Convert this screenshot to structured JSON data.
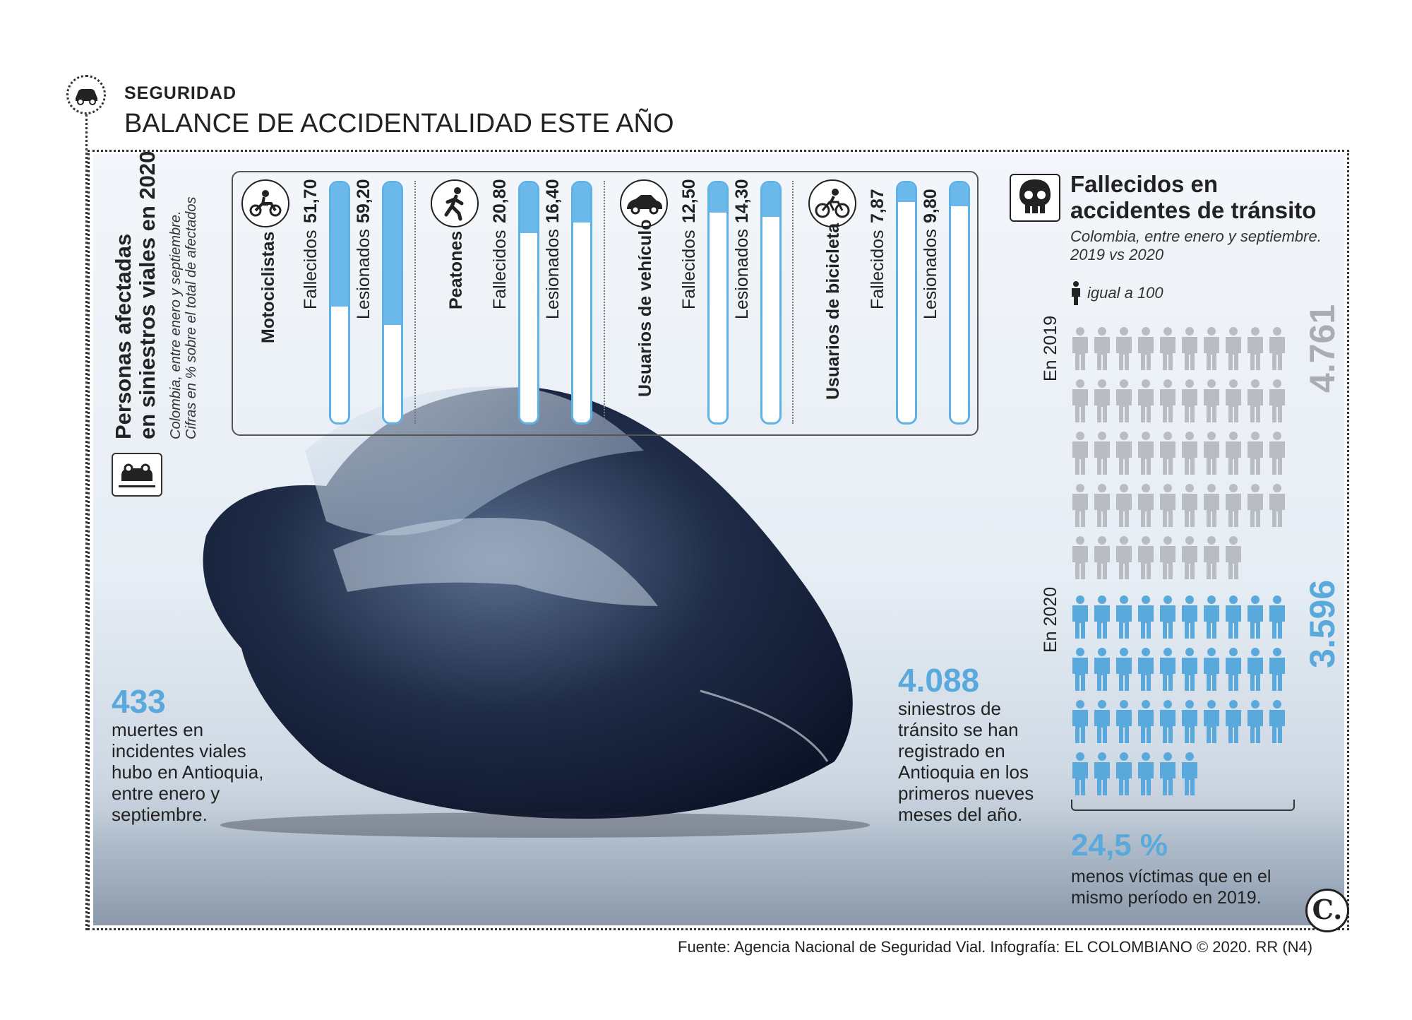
{
  "header": {
    "section": "SEGURIDAD",
    "title": "BALANCE DE ACCIDENTALIDAD ESTE AÑO"
  },
  "stats": {
    "title_line1": "Personas afectadas",
    "title_line2": "en siniestros viales en 2020",
    "note_line1": "Colombia, entre enero y septiembre.",
    "note_line2": "Cifras en % sobre el total de afectados"
  },
  "left_fact": {
    "number": "433",
    "text": [
      "muertes en",
      "incidentes viales",
      "hubo en Antioquia,",
      "entre enero y",
      "septiembre."
    ]
  },
  "mid_fact": {
    "number": "4.088",
    "text": [
      "siniestros de",
      "tránsito se han",
      "registrado en",
      "Antioquia en los",
      "primeros nueves",
      "meses del año."
    ]
  },
  "right": {
    "title_line1": "Fallecidos en",
    "title_line2": "accidentes de tránsito",
    "sub_line1": "Colombia, entre enero y septiembre.",
    "sub_line2": "2019 vs 2020",
    "legend": "igual a 100",
    "year_2019": "En 2019",
    "year_2020": "En 2020",
    "total_2019": "4.761",
    "total_2020": "3.596",
    "pct": "24,5 %",
    "pct_text_line1": "menos víctimas que en el",
    "pct_text_line2": "mismo período en 2019."
  },
  "brand": "C.",
  "source": "Fuente: Agencia Nacional de Seguridad Vial. Infografía: EL COLOMBIANO © 2020. RR (N4)",
  "colors": {
    "accent": "#5aa9dc",
    "grey_icon": "#b9bdc2",
    "blue_icon": "#5aa9dc"
  },
  "chart_data": [
    {
      "type": "bar",
      "title": "Personas afectadas en siniestros viales en 2020",
      "categories": [
        "Motociclistas",
        "Peatones",
        "Usuarios de vehículo",
        "Usuarios de bicicleta"
      ],
      "series": [
        {
          "name": "Fallecidos",
          "labels": [
            "51,70",
            "20,80",
            "12,50",
            "7,87"
          ],
          "values": [
            51.7,
            20.8,
            12.5,
            7.87
          ]
        },
        {
          "name": "Lesionados",
          "labels": [
            "59,20",
            "16,40",
            "14,30",
            "9,80"
          ],
          "values": [
            59.2,
            16.4,
            14.3,
            9.8
          ]
        }
      ],
      "ylim": [
        0,
        100
      ]
    },
    {
      "type": "pictogram",
      "title": "Fallecidos en accidentes de tránsito",
      "unit": 100,
      "categories": [
        "En 2019",
        "En 2020"
      ],
      "values": [
        4761,
        3596
      ],
      "icons": [
        48,
        36
      ]
    }
  ]
}
